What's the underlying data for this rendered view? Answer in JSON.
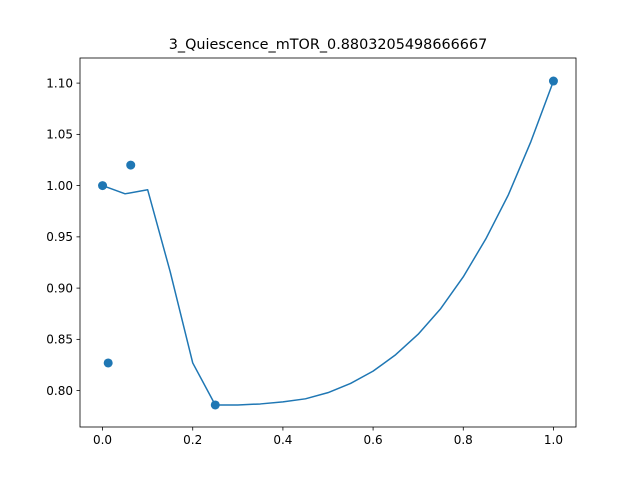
{
  "chart_data": {
    "type": "line",
    "title": "3_Quiescence_mTOR_0.8803205498666667",
    "xlabel": "",
    "ylabel": "",
    "xlim": [
      -0.05,
      1.05
    ],
    "ylim": [
      0.7645,
      1.1245
    ],
    "x_ticks": [
      "0.0",
      "0.2",
      "0.4",
      "0.6",
      "0.8",
      "1.0"
    ],
    "x_tick_values": [
      0.0,
      0.2,
      0.4,
      0.6,
      0.8,
      1.0
    ],
    "y_ticks": [
      "0.80",
      "0.85",
      "0.90",
      "0.95",
      "1.00",
      "1.05",
      "1.10"
    ],
    "y_tick_values": [
      0.8,
      0.85,
      0.9,
      0.95,
      1.0,
      1.05,
      1.1
    ],
    "grid": false,
    "colors": {
      "series": "#1f77b4"
    },
    "series": [
      {
        "kind": "scatter",
        "x": [
          0.0,
          0.0125,
          0.0625,
          0.25,
          1.0
        ],
        "y": [
          1.0,
          0.827,
          1.02,
          0.786,
          1.102
        ]
      },
      {
        "kind": "line",
        "x": [
          0.0,
          0.05,
          0.1,
          0.15,
          0.2,
          0.25,
          0.3,
          0.35,
          0.4,
          0.45,
          0.5,
          0.55,
          0.6,
          0.65,
          0.7,
          0.75,
          0.8,
          0.85,
          0.9,
          0.95,
          1.0
        ],
        "y": [
          1.0,
          0.992,
          0.996,
          0.916,
          0.827,
          0.786,
          0.786,
          0.787,
          0.789,
          0.792,
          0.798,
          0.807,
          0.819,
          0.835,
          0.855,
          0.88,
          0.911,
          0.948,
          0.991,
          1.043,
          1.102
        ]
      }
    ]
  }
}
